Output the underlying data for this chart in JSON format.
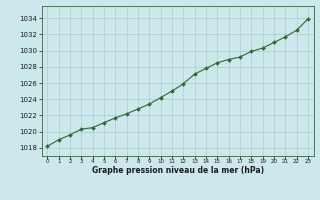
{
  "x": [
    0,
    1,
    2,
    3,
    4,
    5,
    6,
    7,
    8,
    9,
    10,
    11,
    12,
    13,
    14,
    15,
    16,
    17,
    18,
    19,
    20,
    21,
    22,
    23
  ],
  "y": [
    1018.2,
    1019.0,
    1019.6,
    1020.3,
    1020.5,
    1021.1,
    1021.7,
    1022.2,
    1022.8,
    1023.4,
    1024.2,
    1025.0,
    1025.9,
    1027.1,
    1027.8,
    1028.5,
    1028.9,
    1029.2,
    1029.9,
    1030.3,
    1031.0,
    1031.7,
    1032.5,
    1033.9
  ],
  "line_color": "#2d6a2d",
  "marker_color": "#2d6a2d",
  "bg_color": "#cde8ec",
  "grid_color": "#aacccc",
  "title": "Graphe pression niveau de la mer (hPa)",
  "xlabel_vals": [
    0,
    1,
    2,
    3,
    4,
    5,
    6,
    7,
    8,
    9,
    10,
    11,
    12,
    13,
    14,
    15,
    16,
    17,
    18,
    19,
    20,
    21,
    22,
    23
  ],
  "yticks": [
    1018,
    1020,
    1022,
    1024,
    1026,
    1028,
    1030,
    1032,
    1034
  ],
  "ylim": [
    1017.0,
    1035.5
  ],
  "xlim": [
    -0.5,
    23.5
  ]
}
